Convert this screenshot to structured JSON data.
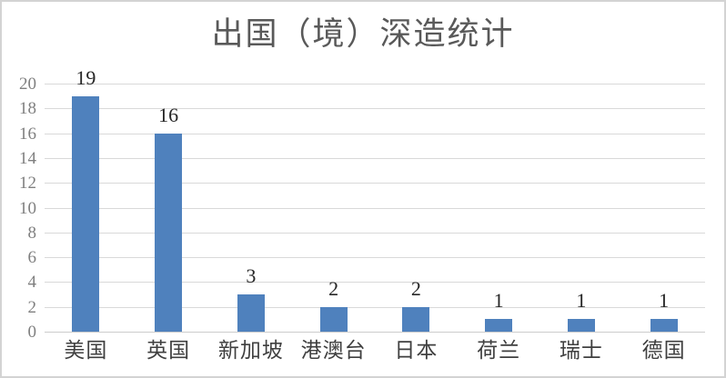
{
  "chart_data": {
    "type": "bar",
    "title": "出国（境）深造统计",
    "categories": [
      "美国",
      "英国",
      "新加坡",
      "港澳台",
      "日本",
      "荷兰",
      "瑞士",
      "德国"
    ],
    "values": [
      19,
      16,
      3,
      2,
      2,
      1,
      1,
      1
    ],
    "xlabel": "",
    "ylabel": "",
    "ylim": [
      0,
      20
    ],
    "yticks": [
      0,
      2,
      4,
      6,
      8,
      10,
      12,
      14,
      16,
      18,
      20
    ],
    "grid": true,
    "legend_position": "none",
    "data_labels_shown": true,
    "colors": {
      "bar": "#4f81bd",
      "gridline": "#d9d9d9",
      "axis_line": "#cccccc",
      "title": "#595959",
      "y_tick": "#7f7f7f",
      "x_tick": "#3f3f3f",
      "data_label": "#262626",
      "frame_border": "#d3d3d3",
      "background": "#ffffff"
    }
  }
}
